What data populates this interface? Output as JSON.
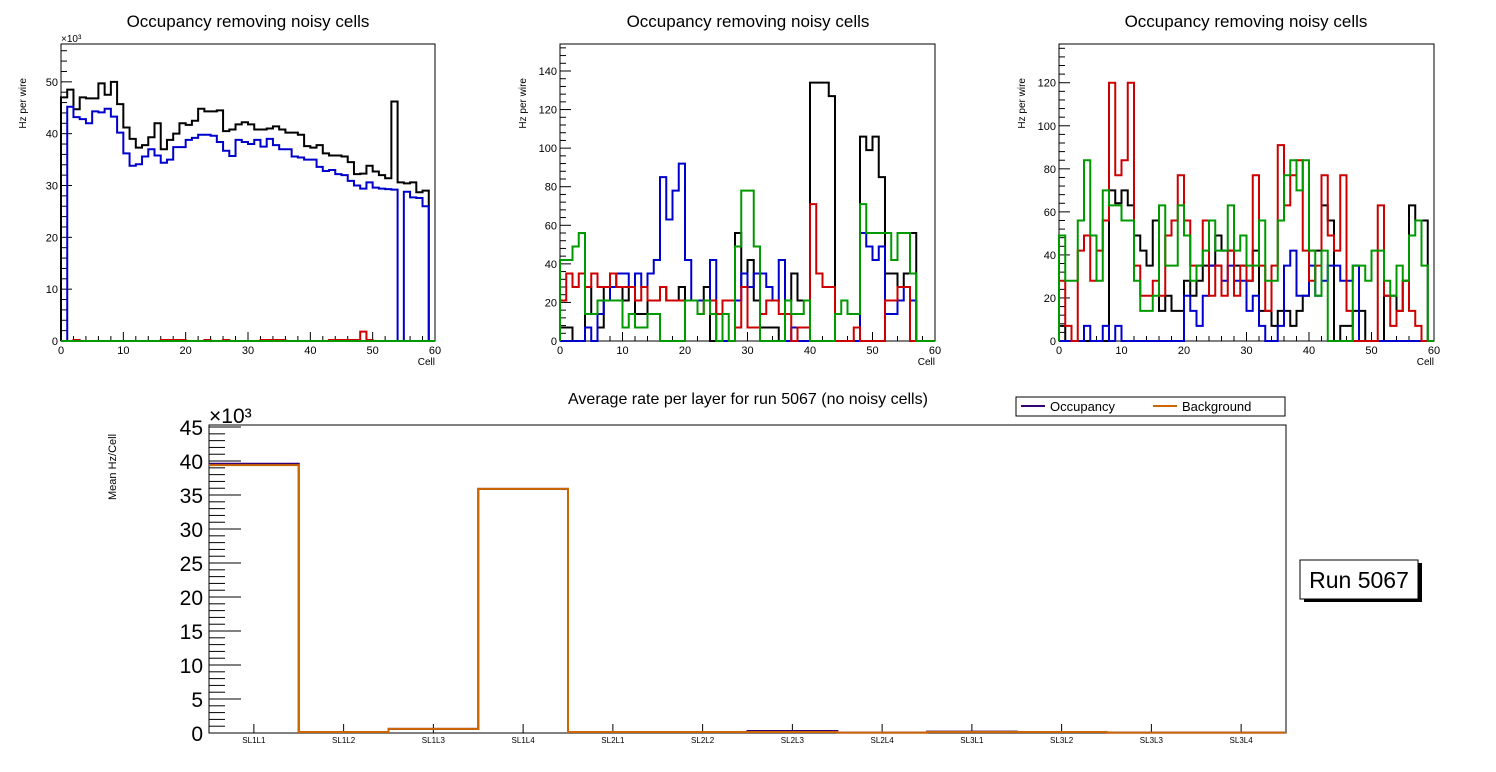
{
  "colors": {
    "black": "#000000",
    "blue": "#0000cc",
    "red": "#cc0000",
    "green": "#009900",
    "occupancy": "#330077",
    "background": "#cc6600"
  },
  "chart_data": [
    {
      "type": "histogram-step",
      "title": "Occupancy removing noisy cells",
      "xlabel": "Cell",
      "ylabel": "Hz per wire",
      "y_exponent_label": "×10³",
      "xlim": [
        0,
        60
      ],
      "ylim": [
        0,
        57.3
      ],
      "y_units": "thousands",
      "x_ticks": [
        0,
        10,
        20,
        30,
        40,
        50,
        60
      ],
      "y_ticks": [
        0,
        10,
        20,
        30,
        40,
        50
      ],
      "series": [
        {
          "name": "layer-black",
          "color": "black",
          "values": [
            47,
            48.5,
            44.7,
            47,
            46.8,
            46.8,
            49.7,
            47.5,
            50,
            45.7,
            41.2,
            39,
            37.3,
            37.8,
            39.3,
            42,
            37,
            38.8,
            40,
            42,
            41.7,
            42.5,
            44.8,
            44.3,
            44.3,
            44.5,
            40.5,
            40.8,
            41.8,
            42.2,
            41.8,
            40.8,
            40.8,
            41,
            41.4,
            40.8,
            40.2,
            40.2,
            39.8,
            37.6,
            37.3,
            37.8,
            36.2,
            35.8,
            35.8,
            35.6,
            34.5,
            32.2,
            32.3,
            33.8,
            32.7,
            32,
            31.4,
            46.2,
            30.6,
            30.4,
            30.6,
            28.7,
            29,
            0
          ]
        },
        {
          "name": "layer-blue",
          "color": "blue",
          "values": [
            0,
            45.2,
            43.2,
            42.8,
            42,
            44.3,
            44.1,
            44.8,
            43.3,
            40.2,
            36.2,
            33.8,
            34.1,
            35.6,
            37,
            35.8,
            34.4,
            35,
            37.4,
            37.4,
            38.8,
            39.2,
            39.8,
            39.8,
            39.6,
            38.4,
            36.7,
            35.7,
            38.8,
            38.4,
            38,
            38.8,
            37.5,
            39,
            37.8,
            37,
            37,
            35.6,
            35.4,
            35,
            35,
            33.6,
            32.8,
            33,
            32.2,
            32,
            30.9,
            30,
            29.4,
            30.6,
            29.6,
            29.4,
            29.3,
            29.2,
            0,
            28.8,
            27.7,
            27.6,
            26,
            0
          ]
        },
        {
          "name": "layer-red",
          "color": "red",
          "values": [
            0,
            0,
            0.2,
            0,
            0,
            0,
            0,
            0,
            0,
            0,
            0,
            0,
            0,
            0,
            0,
            0,
            0.2,
            0.2,
            0.2,
            0.2,
            0,
            0,
            0,
            0.2,
            0,
            0,
            0.2,
            0,
            0,
            0,
            0,
            0,
            0.2,
            0.2,
            0.2,
            0.2,
            0,
            0,
            0,
            0,
            0,
            0,
            0,
            0.2,
            0.2,
            0.2,
            0.2,
            0.2,
            1.8,
            0.2,
            0,
            0,
            0,
            0,
            0,
            0,
            0,
            0,
            0,
            0
          ]
        },
        {
          "name": "layer-green",
          "color": "green",
          "values": [
            0,
            0,
            0,
            0,
            0,
            0,
            0,
            0,
            0,
            0,
            0,
            0,
            0,
            0,
            0,
            0,
            0,
            0,
            0,
            0,
            0,
            0,
            0,
            0,
            0,
            0,
            0,
            0,
            0,
            0,
            0,
            0,
            0,
            0,
            0,
            0,
            0,
            0,
            0,
            0,
            0,
            0,
            0,
            0,
            0,
            0,
            0,
            0,
            0,
            0,
            0,
            0,
            0,
            0,
            0,
            0,
            0,
            0,
            0,
            0
          ]
        }
      ]
    },
    {
      "type": "histogram-step",
      "title": "Occupancy removing noisy cells",
      "xlabel": "Cell",
      "ylabel": "Hz per wire",
      "xlim": [
        0,
        60
      ],
      "ylim": [
        0,
        154
      ],
      "x_ticks": [
        0,
        10,
        20,
        30,
        40,
        50,
        60
      ],
      "y_ticks": [
        0,
        20,
        40,
        60,
        80,
        100,
        120,
        140
      ],
      "series": [
        {
          "name": "layer-black",
          "color": "black",
          "values": [
            7,
            7,
            0,
            0,
            28,
            14,
            7,
            28,
            28,
            28,
            21,
            28,
            14,
            14,
            21,
            21,
            28,
            21,
            21,
            28,
            21,
            21,
            21,
            28,
            0,
            0,
            0,
            0,
            56,
            28,
            42,
            21,
            7,
            7,
            7,
            0,
            21,
            35,
            21,
            21,
            134,
            134,
            134,
            127,
            0,
            0,
            0,
            0,
            106,
            99,
            106,
            85,
            35,
            35,
            28,
            35,
            56,
            0,
            0,
            0
          ]
        },
        {
          "name": "layer-blue",
          "color": "blue",
          "values": [
            0,
            0,
            0,
            0,
            7,
            0,
            14,
            21,
            28,
            35,
            35,
            28,
            35,
            28,
            35,
            42,
            85,
            63,
            78,
            92,
            42,
            21,
            21,
            21,
            42,
            0,
            0,
            0,
            21,
            35,
            28,
            35,
            35,
            28,
            21,
            42,
            0,
            7,
            0,
            0,
            0,
            0,
            0,
            0,
            0,
            0,
            0,
            0,
            56,
            49,
            42,
            49,
            14,
            14,
            21,
            28,
            21,
            0,
            0,
            0
          ]
        },
        {
          "name": "layer-red",
          "color": "red",
          "values": [
            21,
            35,
            28,
            35,
            28,
            35,
            28,
            28,
            35,
            28,
            28,
            28,
            21,
            28,
            21,
            21,
            28,
            21,
            21,
            21,
            21,
            21,
            14,
            21,
            21,
            14,
            21,
            21,
            7,
            28,
            7,
            7,
            14,
            21,
            21,
            14,
            14,
            0,
            7,
            7,
            71,
            35,
            28,
            28,
            0,
            0,
            0,
            7,
            0,
            0,
            0,
            0,
            21,
            21,
            28,
            28,
            0,
            0,
            0,
            0
          ]
        },
        {
          "name": "layer-green",
          "color": "green",
          "values": [
            42,
            42,
            49,
            56,
            14,
            14,
            21,
            21,
            21,
            21,
            7,
            14,
            7,
            7,
            14,
            14,
            0,
            0,
            0,
            0,
            21,
            21,
            14,
            21,
            14,
            0,
            14,
            0,
            49,
            78,
            78,
            49,
            0,
            0,
            0,
            0,
            21,
            14,
            14,
            21,
            0,
            0,
            0,
            0,
            14,
            21,
            14,
            14,
            71,
            56,
            56,
            56,
            56,
            42,
            56,
            56,
            35,
            0,
            0,
            0
          ]
        }
      ]
    },
    {
      "type": "histogram-step",
      "title": "Occupancy removing noisy cells",
      "xlabel": "Cell",
      "ylabel": "Hz per wire",
      "xlim": [
        0,
        60
      ],
      "ylim": [
        0,
        138
      ],
      "x_ticks": [
        0,
        10,
        20,
        30,
        40,
        50,
        60
      ],
      "y_ticks": [
        0,
        20,
        40,
        60,
        80,
        100,
        120
      ],
      "series": [
        {
          "name": "layer-black",
          "color": "black",
          "values": [
            7,
            0,
            0,
            0,
            0,
            0,
            0,
            0,
            70,
            64,
            70,
            63,
            49,
            42,
            35,
            56,
            14,
            21,
            14,
            14,
            28,
            21,
            28,
            35,
            35,
            49,
            42,
            42,
            35,
            35,
            28,
            42,
            14,
            14,
            7,
            14,
            14,
            7,
            14,
            21,
            42,
            42,
            63,
            56,
            0,
            7,
            7,
            14,
            14,
            0,
            0,
            0,
            21,
            21,
            14,
            28,
            63,
            56,
            56,
            0
          ]
        },
        {
          "name": "layer-blue",
          "color": "blue",
          "values": [
            0,
            0,
            0,
            0,
            7,
            0,
            0,
            7,
            0,
            7,
            0,
            0,
            0,
            0,
            0,
            0,
            0,
            0,
            0,
            0,
            21,
            14,
            7,
            21,
            35,
            35,
            28,
            35,
            28,
            28,
            14,
            21,
            7,
            0,
            0,
            7,
            35,
            42,
            21,
            21,
            35,
            21,
            28,
            35,
            35,
            28,
            28,
            35,
            0,
            0,
            0,
            0,
            0,
            0,
            0,
            0,
            0,
            0,
            0,
            0
          ]
        },
        {
          "name": "layer-red",
          "color": "red",
          "values": [
            28,
            7,
            0,
            42,
            49,
            28,
            42,
            56,
            120,
            77,
            84,
            120,
            35,
            21,
            21,
            28,
            21,
            49,
            56,
            77,
            56,
            35,
            35,
            56,
            21,
            35,
            21,
            42,
            21,
            35,
            28,
            77,
            35,
            14,
            35,
            91,
            63,
            77,
            84,
            42,
            28,
            35,
            77,
            49,
            42,
            77,
            14,
            0,
            0,
            0,
            0,
            63,
            21,
            7,
            14,
            28,
            14,
            7,
            0,
            0
          ]
        },
        {
          "name": "layer-green",
          "color": "green",
          "values": [
            49,
            28,
            28,
            56,
            84,
            49,
            28,
            70,
            63,
            63,
            56,
            56,
            28,
            14,
            14,
            21,
            63,
            35,
            35,
            63,
            49,
            28,
            35,
            42,
            56,
            42,
            42,
            63,
            42,
            49,
            35,
            35,
            56,
            28,
            28,
            56,
            77,
            84,
            70,
            84,
            42,
            21,
            42,
            0,
            0,
            0,
            0,
            35,
            35,
            28,
            42,
            42,
            28,
            21,
            35,
            28,
            49,
            56,
            35,
            0
          ]
        }
      ]
    },
    {
      "type": "histogram-step",
      "title": "Average rate per layer for run 5067 (no noisy cells)",
      "xlabel": "",
      "ylabel": "Mean Hz/Cell",
      "y_exponent_label": "×10³",
      "categories": [
        "SL1L1",
        "SL1L2",
        "SL1L3",
        "SL1L4",
        "SL2L1",
        "SL2L2",
        "SL2L3",
        "SL2L4",
        "SL3L1",
        "SL3L2",
        "SL3L3",
        "SL3L4"
      ],
      "ylim": [
        0,
        45.3
      ],
      "y_units": "thousands",
      "y_ticks": [
        0,
        5,
        10,
        15,
        20,
        25,
        30,
        35,
        40,
        45
      ],
      "legend": {
        "placement": "top-right",
        "entries": [
          {
            "label": "Occupancy",
            "color": "occupancy"
          },
          {
            "label": "Background",
            "color": "background"
          }
        ]
      },
      "series": [
        {
          "name": "Occupancy",
          "color": "occupancy",
          "values": [
            39.6,
            0.15,
            0.6,
            35.9,
            0.15,
            0.15,
            0.3,
            0.05,
            0.2,
            0.15,
            0.05,
            0.05
          ]
        },
        {
          "name": "Background",
          "color": "background",
          "values": [
            39.4,
            0.15,
            0.6,
            35.9,
            0.15,
            0.15,
            0.15,
            0.05,
            0.15,
            0.15,
            0.05,
            0.05
          ]
        }
      ]
    }
  ],
  "annotation": {
    "run_label": "Run 5067"
  }
}
